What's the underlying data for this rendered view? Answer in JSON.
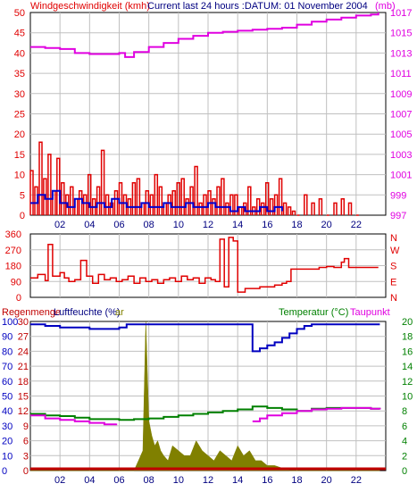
{
  "header": {
    "left_title": "Windgeschwindigkeit (kmh)",
    "center_title": "Current last 24 hours :DATUM: 01 November 2004",
    "right_unit": "(mb)"
  },
  "colors": {
    "wind_speed": "#e00000",
    "wind_avg": "#0000d0",
    "pressure": "#e000e0",
    "direction": "#e00000",
    "humidity": "#0000c0",
    "temperature": "#008000",
    "dewpoint": "#e000e0",
    "rain": "#808000",
    "rain_bar": "#c00000",
    "grid": "#c0c0c0",
    "frame": "#000000"
  },
  "x_axis": {
    "labels": [
      "02",
      "04",
      "06",
      "08",
      "10",
      "12",
      "14",
      "16",
      "18",
      "20",
      "22"
    ]
  },
  "chart_data": [
    {
      "type": "line",
      "panel": "wind_pressure",
      "title": "Windgeschwindigkeit (kmh)",
      "left_ticks": [
        0,
        5,
        10,
        15,
        20,
        25,
        30,
        35,
        40,
        45,
        50
      ],
      "right_ticks": [
        997,
        999,
        1001,
        1003,
        1005,
        1007,
        1009,
        1011,
        1013,
        1015,
        1017
      ],
      "ylim_left": [
        0,
        50
      ],
      "ylim_right": [
        997,
        1017
      ],
      "right_unit": "(mb)",
      "series": [
        {
          "key": "pressure",
          "hours": [
            0,
            1,
            2,
            3,
            4,
            5,
            6,
            6.4,
            7,
            8,
            9,
            10,
            11,
            12,
            13,
            14,
            15,
            16,
            17,
            18,
            19,
            20,
            21,
            22,
            23,
            23.5
          ],
          "values": [
            1013.6,
            1013.5,
            1013.4,
            1013.0,
            1012.9,
            1012.9,
            1013.0,
            1012.6,
            1013.1,
            1013.6,
            1014.0,
            1014.4,
            1014.7,
            1015.0,
            1015.1,
            1015.2,
            1015.3,
            1015.4,
            1015.5,
            1015.8,
            1016.1,
            1016.3,
            1016.5,
            1016.7,
            1016.8,
            1017.0
          ]
        },
        {
          "key": "wind_speed",
          "hours": [
            0,
            0.3,
            0.6,
            0.9,
            1.2,
            1.5,
            1.8,
            2.1,
            2.4,
            2.7,
            3,
            3.3,
            3.6,
            3.9,
            4.2,
            4.5,
            4.8,
            5.1,
            5.4,
            5.7,
            6,
            6.3,
            6.6,
            6.9,
            7.2,
            7.5,
            7.8,
            8.1,
            8.4,
            8.7,
            9,
            9.3,
            9.6,
            9.9,
            10.2,
            10.5,
            10.8,
            11.1,
            11.4,
            11.7,
            12,
            12.3,
            12.6,
            12.9,
            13.2,
            13.5,
            13.8,
            14.1,
            14.4,
            14.7,
            15,
            15.3,
            15.6,
            15.9,
            16.2,
            16.5,
            16.8,
            17.1,
            17.4,
            17.7,
            18,
            18.5,
            19,
            19.5,
            20,
            20.5,
            21,
            21.5,
            22
          ],
          "values": [
            11,
            7,
            18,
            9,
            15,
            6,
            14,
            8,
            5,
            7,
            4,
            6,
            5,
            10,
            4,
            7,
            16,
            5,
            3,
            6,
            8,
            5,
            4,
            8,
            9,
            3,
            6,
            5,
            10,
            7,
            3,
            5,
            6,
            8,
            9,
            4,
            7,
            12,
            3,
            5,
            6,
            4,
            7,
            9,
            3,
            5,
            5,
            2,
            3,
            7,
            2,
            4,
            3,
            8,
            4,
            5,
            9,
            3,
            2,
            1,
            0,
            5,
            3,
            4,
            0,
            3,
            4,
            3,
            0
          ]
        },
        {
          "key": "wind_avg",
          "hours": [
            0,
            0.5,
            1,
            1.5,
            2,
            2.5,
            3,
            3.5,
            4,
            4.5,
            5,
            5.5,
            6,
            6.5,
            7,
            7.5,
            8,
            8.5,
            9,
            9.5,
            10,
            10.5,
            11,
            11.5,
            12,
            12.5,
            13,
            13.5,
            14,
            14.5,
            15,
            15.5,
            16,
            16.5,
            17
          ],
          "values": [
            3,
            5,
            4,
            6,
            3,
            2,
            4,
            3,
            2,
            3,
            2,
            4,
            3,
            2,
            2,
            3,
            2,
            2,
            3,
            2,
            2,
            3,
            2,
            2,
            3,
            2,
            2,
            1,
            2,
            1,
            1,
            2,
            1,
            2,
            1
          ]
        }
      ]
    },
    {
      "type": "line",
      "panel": "direction",
      "left_ticks": [
        0,
        90,
        180,
        270,
        360
      ],
      "right_labels": [
        "N",
        "W",
        "S",
        "E",
        "N"
      ],
      "ylim": [
        0,
        360
      ],
      "series": [
        {
          "key": "direction",
          "hours": [
            0,
            0.5,
            1,
            1.2,
            1.5,
            2,
            2.3,
            2.6,
            3,
            3.4,
            3.8,
            4.2,
            4.6,
            5,
            5.4,
            5.8,
            6.2,
            6.6,
            7,
            7.4,
            7.8,
            8.2,
            8.6,
            9,
            9.4,
            9.8,
            10.2,
            10.6,
            11,
            11.4,
            11.8,
            12.2,
            12.5,
            12.8,
            13.1,
            13.4,
            13.7,
            14,
            14.5,
            15,
            15.5,
            16,
            16.5,
            17,
            17.3,
            17.6,
            18,
            18.5,
            19,
            19.5,
            20,
            20.5,
            21,
            21.2,
            21.5,
            22,
            23,
            23.5
          ],
          "values": [
            110,
            130,
            95,
            300,
            120,
            140,
            110,
            90,
            100,
            210,
            120,
            80,
            130,
            100,
            110,
            90,
            100,
            120,
            80,
            110,
            90,
            100,
            80,
            100,
            110,
            90,
            120,
            100,
            110,
            80,
            110,
            100,
            90,
            330,
            60,
            340,
            320,
            30,
            50,
            50,
            60,
            60,
            70,
            80,
            90,
            160,
            160,
            160,
            160,
            170,
            175,
            170,
            200,
            220,
            170,
            170,
            170,
            170
          ]
        }
      ]
    },
    {
      "type": "line",
      "panel": "climate",
      "left_title": "Regenmenge",
      "center_title": "Luftfeuchte (%)",
      "bar_label": "ar",
      "right_title_1": "Temperatur (°C)",
      "right_title_2": "Taupunkt",
      "left_ticks_humidity": [
        0,
        10,
        20,
        30,
        40,
        50,
        60,
        70,
        80,
        90,
        100
      ],
      "left_ticks_rain": [
        0,
        3,
        6,
        9,
        12,
        15,
        18,
        21,
        24,
        27,
        30
      ],
      "right_ticks": [
        0,
        2,
        4,
        6,
        8,
        10,
        12,
        14,
        16,
        18,
        20
      ],
      "ylim_humidity": [
        0,
        100
      ],
      "ylim_right": [
        0,
        20
      ],
      "series": [
        {
          "key": "humidity",
          "hours": [
            0,
            1,
            2,
            3,
            4,
            5,
            6,
            6.5,
            7,
            8,
            9,
            10,
            11,
            12,
            13,
            14,
            14.8,
            15,
            15.5,
            16,
            16.5,
            17,
            17.5,
            18,
            18.5,
            19,
            20,
            21,
            22,
            23,
            23.6
          ],
          "values": [
            98,
            97,
            96,
            96,
            95,
            95,
            96,
            98,
            98,
            98,
            98,
            98,
            98,
            98,
            98,
            98,
            98,
            80,
            82,
            84,
            86,
            89,
            92,
            95,
            97,
            98,
            98,
            98,
            98,
            98,
            98
          ]
        },
        {
          "key": "temperature",
          "hours": [
            0,
            1,
            2,
            3,
            4,
            5,
            6,
            7,
            8,
            9,
            10,
            11,
            12,
            13,
            14,
            15,
            16,
            17,
            18,
            19,
            20,
            21,
            22,
            23,
            23.6
          ],
          "values": [
            7.6,
            7.4,
            7.3,
            7.1,
            6.9,
            6.9,
            6.8,
            6.9,
            7.0,
            7.2,
            7.4,
            7.6,
            7.8,
            8.0,
            8.2,
            8.6,
            8.4,
            8.2,
            8.0,
            8.3,
            8.4,
            8.4,
            8.4,
            8.3,
            8.2
          ]
        },
        {
          "key": "dewpoint",
          "hours": [
            0,
            1,
            2,
            3,
            4,
            5,
            5.8,
            14.8,
            15,
            15.5,
            16,
            17,
            18,
            19,
            20,
            21,
            22,
            23,
            23.6
          ],
          "values": [
            7.4,
            7.0,
            6.8,
            6.6,
            6.4,
            6.2,
            6.3,
            null,
            6.6,
            7.0,
            7.4,
            7.7,
            8.0,
            8.2,
            8.3,
            8.4,
            8.4,
            8.3,
            8.2
          ]
        },
        {
          "key": "rain",
          "hours": [
            0,
            7,
            7.3,
            7.6,
            7.8,
            8,
            8.2,
            8.4,
            8.6,
            8.8,
            9,
            9.3,
            9.6,
            10,
            10.4,
            10.8,
            11.2,
            11.6,
            12,
            12.4,
            12.8,
            13.2,
            13.6,
            14,
            14.4,
            14.8,
            15.2,
            15.6,
            16,
            16.5,
            17,
            17.5,
            23.6
          ],
          "values": [
            0,
            0,
            2,
            4,
            30,
            10,
            7,
            5,
            6,
            4,
            3,
            2,
            5,
            4,
            3,
            3,
            6,
            4,
            3,
            2,
            4,
            3,
            2,
            5,
            3,
            4,
            2,
            2,
            1,
            1,
            0.5,
            0,
            0
          ]
        }
      ]
    }
  ]
}
